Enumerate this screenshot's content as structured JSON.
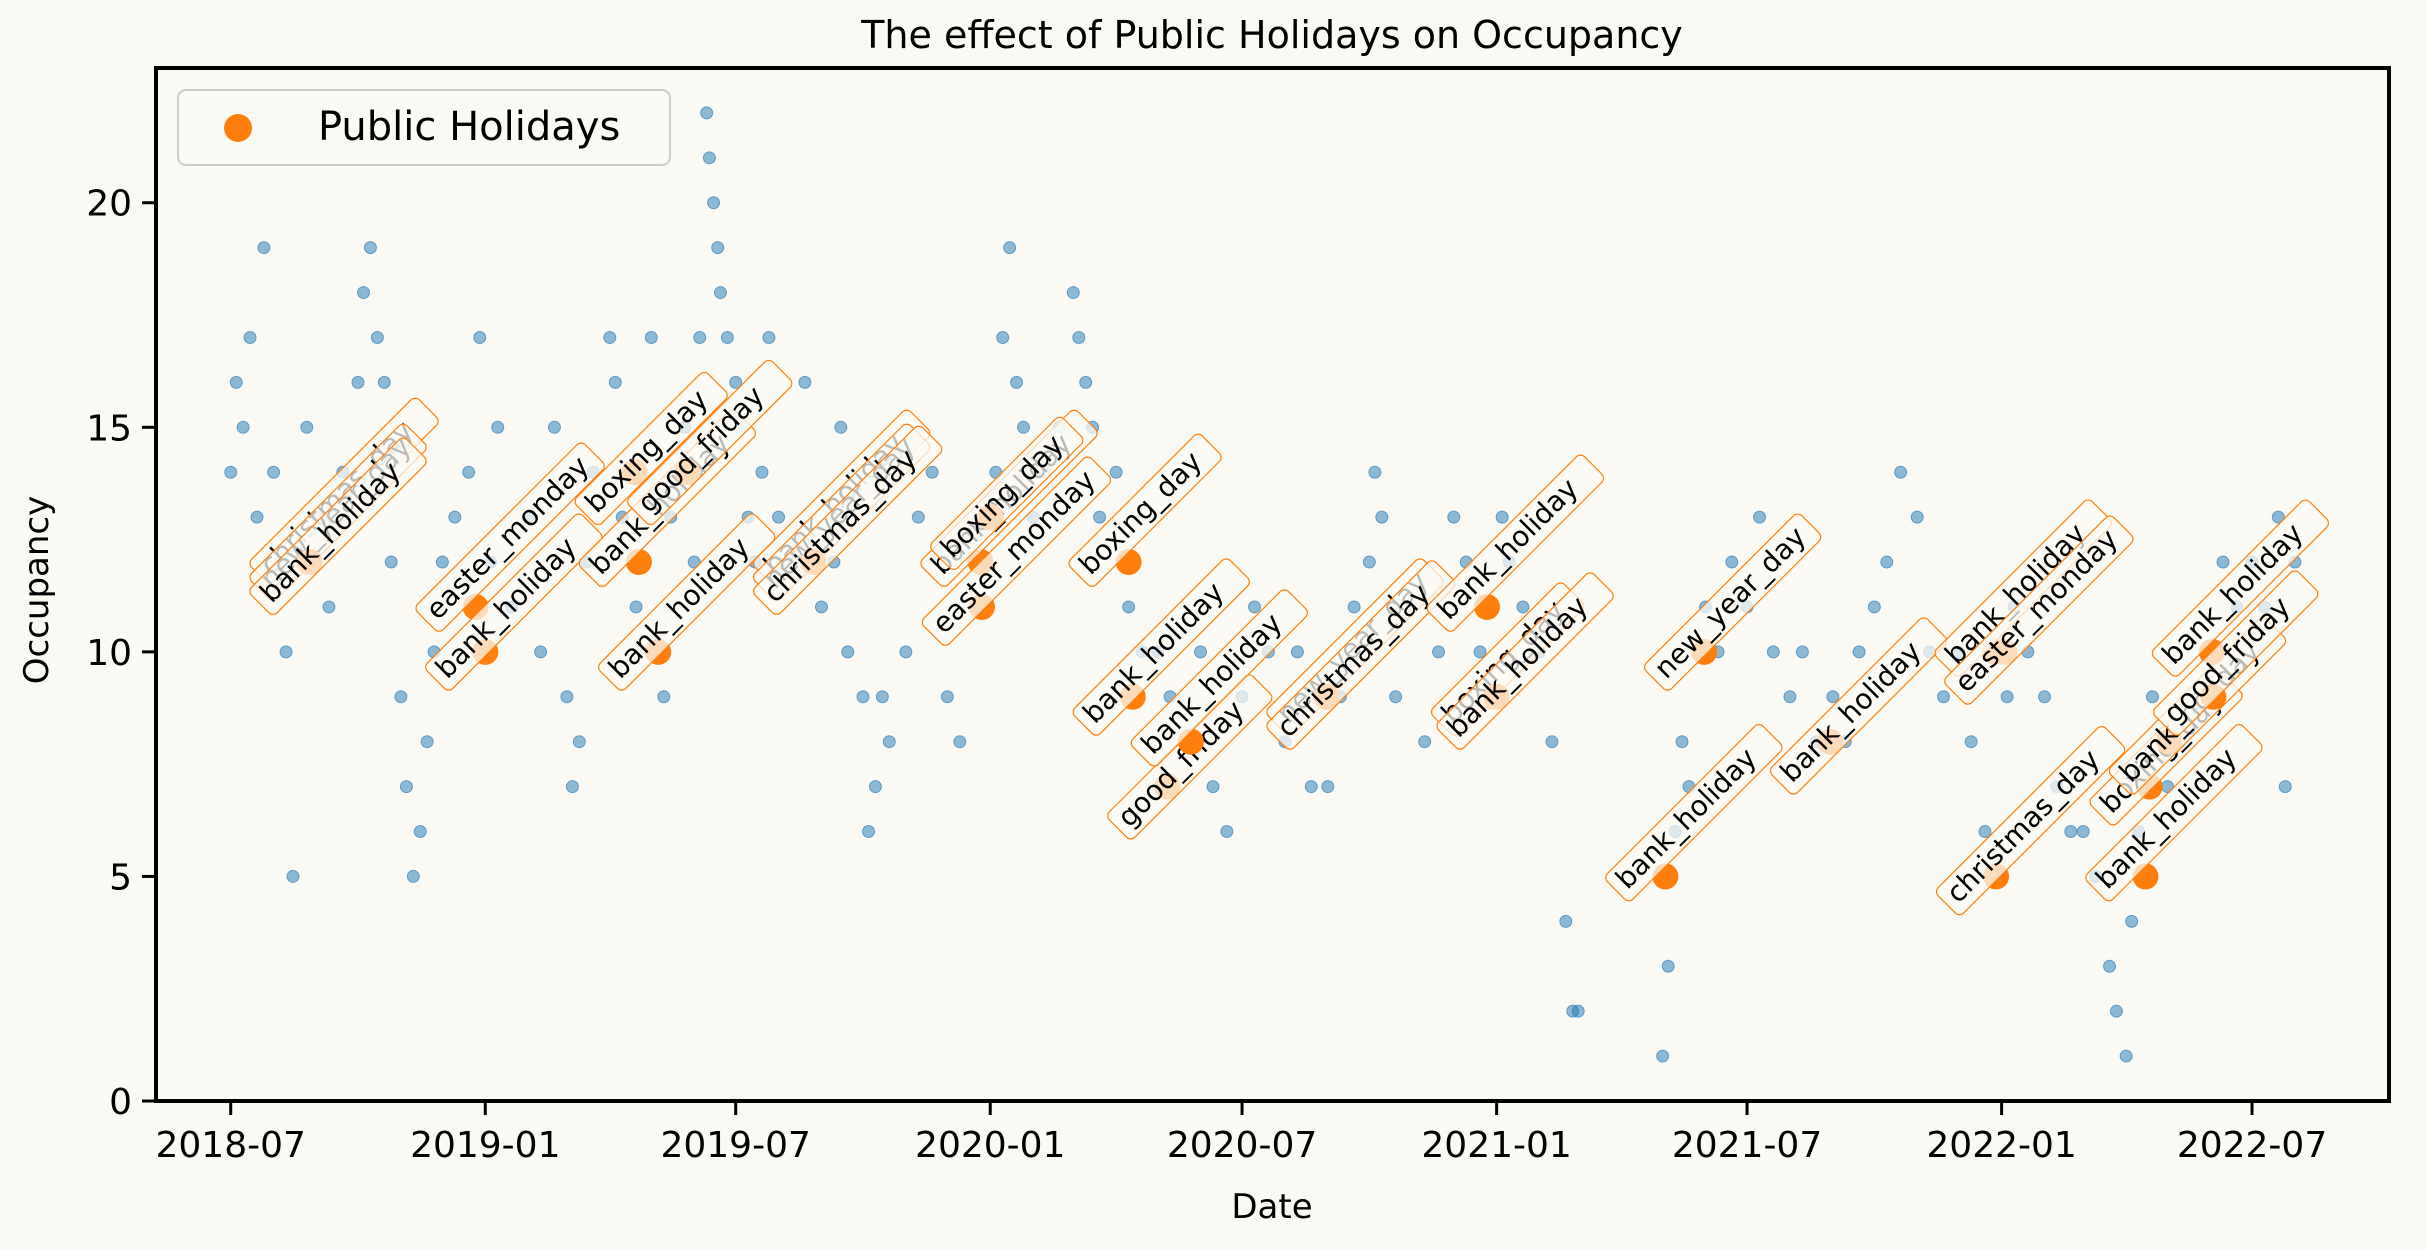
{
  "chart_data": {
    "type": "scatter",
    "title": "The effect of Public Holidays on Occupancy",
    "xlabel": "Date",
    "ylabel": "Occupancy",
    "x_ticks": [
      "2018-07",
      "2019-01",
      "2019-07",
      "2020-01",
      "2020-07",
      "2021-01",
      "2021-07",
      "2022-01",
      "2022-07"
    ],
    "y_ticks": [
      0,
      5,
      10,
      15,
      20
    ],
    "xlim": [
      "2018-05-08",
      "2022-10-08"
    ],
    "ylim": [
      0,
      23
    ],
    "grid": false,
    "legend": {
      "position": "top-left",
      "entries": [
        "Public Holidays"
      ]
    },
    "colors": {
      "occupancy": "#1f77b4",
      "holiday": "#ff7f0e",
      "background": "#fbf9f4"
    },
    "occupancy_series_note_unlabeled": true,
    "occupancy_samples": [
      [
        "2018-07-01",
        14
      ],
      [
        "2018-07-05",
        16
      ],
      [
        "2018-07-10",
        15
      ],
      [
        "2018-07-15",
        17
      ],
      [
        "2018-07-20",
        13
      ],
      [
        "2018-07-25",
        19
      ],
      [
        "2018-08-01",
        14
      ],
      [
        "2018-08-05",
        12
      ],
      [
        "2018-08-10",
        10
      ],
      [
        "2018-08-15",
        5
      ],
      [
        "2018-08-20",
        12
      ],
      [
        "2018-08-25",
        15
      ],
      [
        "2018-09-01",
        13
      ],
      [
        "2018-09-10",
        11
      ],
      [
        "2018-09-20",
        14
      ],
      [
        "2018-10-01",
        16
      ],
      [
        "2018-10-05",
        18
      ],
      [
        "2018-10-10",
        19
      ],
      [
        "2018-10-15",
        17
      ],
      [
        "2018-10-20",
        16
      ],
      [
        "2018-10-25",
        12
      ],
      [
        "2018-11-01",
        9
      ],
      [
        "2018-11-05",
        7
      ],
      [
        "2018-11-10",
        5
      ],
      [
        "2018-11-15",
        6
      ],
      [
        "2018-11-20",
        8
      ],
      [
        "2018-11-25",
        10
      ],
      [
        "2018-12-01",
        12
      ],
      [
        "2018-12-10",
        13
      ],
      [
        "2018-12-20",
        14
      ],
      [
        "2018-12-28",
        17
      ],
      [
        "2019-01-05",
        12
      ],
      [
        "2019-01-10",
        15
      ],
      [
        "2019-01-20",
        11
      ],
      [
        "2019-02-01",
        13
      ],
      [
        "2019-02-10",
        10
      ],
      [
        "2019-02-20",
        15
      ],
      [
        "2019-03-01",
        9
      ],
      [
        "2019-03-05",
        7
      ],
      [
        "2019-03-10",
        8
      ],
      [
        "2019-03-15",
        12
      ],
      [
        "2019-03-20",
        14
      ],
      [
        "2019-04-01",
        17
      ],
      [
        "2019-04-05",
        16
      ],
      [
        "2019-04-10",
        13
      ],
      [
        "2019-04-20",
        11
      ],
      [
        "2019-05-01",
        17
      ],
      [
        "2019-05-10",
        9
      ],
      [
        "2019-05-15",
        13
      ],
      [
        "2019-05-25",
        15
      ],
      [
        "2019-06-01",
        12
      ],
      [
        "2019-06-05",
        17
      ],
      [
        "2019-06-10",
        22
      ],
      [
        "2019-06-12",
        21
      ],
      [
        "2019-06-15",
        20
      ],
      [
        "2019-06-18",
        19
      ],
      [
        "2019-06-20",
        18
      ],
      [
        "2019-06-25",
        17
      ],
      [
        "2019-07-01",
        16
      ],
      [
        "2019-07-05",
        15
      ],
      [
        "2019-07-10",
        13
      ],
      [
        "2019-07-15",
        12
      ],
      [
        "2019-07-20",
        14
      ],
      [
        "2019-07-25",
        17
      ],
      [
        "2019-08-01",
        13
      ],
      [
        "2019-08-10",
        12
      ],
      [
        "2019-08-20",
        16
      ],
      [
        "2019-09-01",
        11
      ],
      [
        "2019-09-10",
        12
      ],
      [
        "2019-09-15",
        15
      ],
      [
        "2019-09-20",
        10
      ],
      [
        "2019-10-01",
        9
      ],
      [
        "2019-10-05",
        6
      ],
      [
        "2019-10-10",
        7
      ],
      [
        "2019-10-15",
        9
      ],
      [
        "2019-10-20",
        8
      ],
      [
        "2019-11-01",
        10
      ],
      [
        "2019-11-10",
        13
      ],
      [
        "2019-11-20",
        14
      ],
      [
        "2019-12-01",
        9
      ],
      [
        "2019-12-10",
        8
      ],
      [
        "2019-12-20",
        12
      ],
      [
        "2020-01-05",
        14
      ],
      [
        "2020-01-10",
        17
      ],
      [
        "2020-01-15",
        19
      ],
      [
        "2020-01-20",
        16
      ],
      [
        "2020-01-25",
        15
      ],
      [
        "2020-02-01",
        13
      ],
      [
        "2020-02-10",
        14
      ],
      [
        "2020-02-20",
        15
      ],
      [
        "2020-03-01",
        18
      ],
      [
        "2020-03-05",
        17
      ],
      [
        "2020-03-10",
        16
      ],
      [
        "2020-03-15",
        15
      ],
      [
        "2020-03-20",
        13
      ],
      [
        "2020-04-01",
        14
      ],
      [
        "2020-04-10",
        11
      ],
      [
        "2020-04-20",
        10
      ],
      [
        "2020-05-01",
        10
      ],
      [
        "2020-05-10",
        9
      ],
      [
        "2020-05-20",
        8
      ],
      [
        "2020-06-01",
        10
      ],
      [
        "2020-06-10",
        7
      ],
      [
        "2020-06-20",
        6
      ],
      [
        "2020-07-01",
        9
      ],
      [
        "2020-07-10",
        11
      ],
      [
        "2020-07-20",
        10
      ],
      [
        "2020-08-01",
        8
      ],
      [
        "2020-08-10",
        10
      ],
      [
        "2020-08-20",
        7
      ],
      [
        "2020-09-01",
        7
      ],
      [
        "2020-09-10",
        9
      ],
      [
        "2020-09-20",
        11
      ],
      [
        "2020-10-01",
        12
      ],
      [
        "2020-10-05",
        14
      ],
      [
        "2020-10-10",
        13
      ],
      [
        "2020-10-20",
        9
      ],
      [
        "2020-11-01",
        11
      ],
      [
        "2020-11-10",
        8
      ],
      [
        "2020-11-20",
        10
      ],
      [
        "2020-12-01",
        13
      ],
      [
        "2020-12-10",
        12
      ],
      [
        "2020-12-20",
        10
      ],
      [
        "2021-01-05",
        13
      ],
      [
        "2021-01-10",
        12
      ],
      [
        "2021-01-20",
        11
      ],
      [
        "2021-02-01",
        10
      ],
      [
        "2021-02-10",
        8
      ],
      [
        "2021-02-20",
        4
      ],
      [
        "2021-02-25",
        2
      ],
      [
        "2021-03-01",
        2
      ],
      [
        "2021-05-01",
        1
      ],
      [
        "2021-05-05",
        3
      ],
      [
        "2021-05-10",
        6
      ],
      [
        "2021-05-15",
        8
      ],
      [
        "2021-05-20",
        7
      ],
      [
        "2021-06-01",
        11
      ],
      [
        "2021-06-10",
        10
      ],
      [
        "2021-06-20",
        12
      ],
      [
        "2021-07-01",
        11
      ],
      [
        "2021-07-10",
        13
      ],
      [
        "2021-07-20",
        10
      ],
      [
        "2021-08-01",
        9
      ],
      [
        "2021-08-10",
        10
      ],
      [
        "2021-08-20",
        8
      ],
      [
        "2021-09-01",
        9
      ],
      [
        "2021-09-10",
        8
      ],
      [
        "2021-09-20",
        10
      ],
      [
        "2021-10-01",
        11
      ],
      [
        "2021-10-10",
        12
      ],
      [
        "2021-10-20",
        14
      ],
      [
        "2021-11-01",
        13
      ],
      [
        "2021-11-10",
        10
      ],
      [
        "2021-11-20",
        9
      ],
      [
        "2021-12-01",
        10
      ],
      [
        "2021-12-10",
        8
      ],
      [
        "2021-12-20",
        6
      ],
      [
        "2022-01-05",
        9
      ],
      [
        "2022-01-10",
        11
      ],
      [
        "2022-01-20",
        10
      ],
      [
        "2022-02-01",
        9
      ],
      [
        "2022-02-10",
        7
      ],
      [
        "2022-02-20",
        6
      ],
      [
        "2022-03-01",
        6
      ],
      [
        "2022-03-10",
        5
      ],
      [
        "2022-03-20",
        3
      ],
      [
        "2022-03-25",
        2
      ],
      [
        "2022-04-01",
        1
      ],
      [
        "2022-04-05",
        4
      ],
      [
        "2022-04-10",
        6
      ],
      [
        "2022-04-20",
        9
      ],
      [
        "2022-05-01",
        7
      ],
      [
        "2022-05-10",
        8
      ],
      [
        "2022-05-20",
        9
      ],
      [
        "2022-06-01",
        10
      ],
      [
        "2022-06-10",
        12
      ],
      [
        "2022-06-20",
        11
      ],
      [
        "2022-07-01",
        12
      ],
      [
        "2022-07-10",
        11
      ],
      [
        "2022-07-20",
        13
      ],
      [
        "2022-07-25",
        7
      ],
      [
        "2022-08-01",
        12
      ]
    ],
    "holidays": [
      {
        "date": "2018-08-27",
        "y": 12,
        "label": "christmas_day"
      },
      {
        "date": "2018-08-27",
        "y": 12,
        "label": "new_year_day"
      },
      {
        "date": "2018-08-27",
        "y": 12,
        "label": "bank_holiday"
      },
      {
        "date": "2018-12-25",
        "y": 11,
        "label": "easter_monday"
      },
      {
        "date": "2019-01-01",
        "y": 10,
        "label": "bank_holiday"
      },
      {
        "date": "2019-04-19",
        "y": 14,
        "label": "boxing_day"
      },
      {
        "date": "2019-04-22",
        "y": 12,
        "label": "bank_holiday"
      },
      {
        "date": "2019-05-06",
        "y": 10,
        "label": "bank_holiday"
      },
      {
        "date": "2019-05-27",
        "y": 14,
        "label": "good_friday"
      },
      {
        "date": "2019-08-26",
        "y": 12,
        "label": "bank_holiday"
      },
      {
        "date": "2019-08-26",
        "y": 12,
        "label": "new_year_day"
      },
      {
        "date": "2019-08-26",
        "y": 12,
        "label": "christmas_day"
      },
      {
        "date": "2019-12-25",
        "y": 12,
        "label": "bank_holiday"
      },
      {
        "date": "2019-12-26",
        "y": 11,
        "label": "easter_monday"
      },
      {
        "date": "2020-01-01",
        "y": 13,
        "label": "boxing_day"
      },
      {
        "date": "2020-04-10",
        "y": 12,
        "label": "boxing_day"
      },
      {
        "date": "2020-04-13",
        "y": 9,
        "label": "bank_holiday"
      },
      {
        "date": "2020-05-08",
        "y": 7,
        "label": "good_friday"
      },
      {
        "date": "2020-05-25",
        "y": 8,
        "label": "bank_holiday"
      },
      {
        "date": "2020-08-31",
        "y": 9,
        "label": "new_year_day"
      },
      {
        "date": "2020-08-31",
        "y": 9,
        "label": "christmas_day"
      },
      {
        "date": "2020-12-25",
        "y": 11,
        "label": "bank_holiday"
      },
      {
        "date": "2020-12-28",
        "y": 9,
        "label": "boxing_day"
      },
      {
        "date": "2021-01-01",
        "y": 9,
        "label": "bank_holiday"
      },
      {
        "date": "2021-05-03",
        "y": 5,
        "label": "bank_holiday"
      },
      {
        "date": "2021-05-31",
        "y": 10,
        "label": "new_year_day"
      },
      {
        "date": "2021-08-30",
        "y": 8,
        "label": "bank_holiday"
      },
      {
        "date": "2021-12-27",
        "y": 10,
        "label": "bank_holiday"
      },
      {
        "date": "2021-12-28",
        "y": 5,
        "label": "christmas_day"
      },
      {
        "date": "2022-01-03",
        "y": 10,
        "label": "easter_monday"
      },
      {
        "date": "2022-04-15",
        "y": 5,
        "label": "bank_holiday"
      },
      {
        "date": "2022-04-18",
        "y": 7,
        "label": "boxing_day"
      },
      {
        "date": "2022-05-02",
        "y": 8,
        "label": "bank_holiday"
      },
      {
        "date": "2022-06-02",
        "y": 10,
        "label": "bank_holiday"
      },
      {
        "date": "2022-06-03",
        "y": 9,
        "label": "good_friday"
      }
    ]
  }
}
